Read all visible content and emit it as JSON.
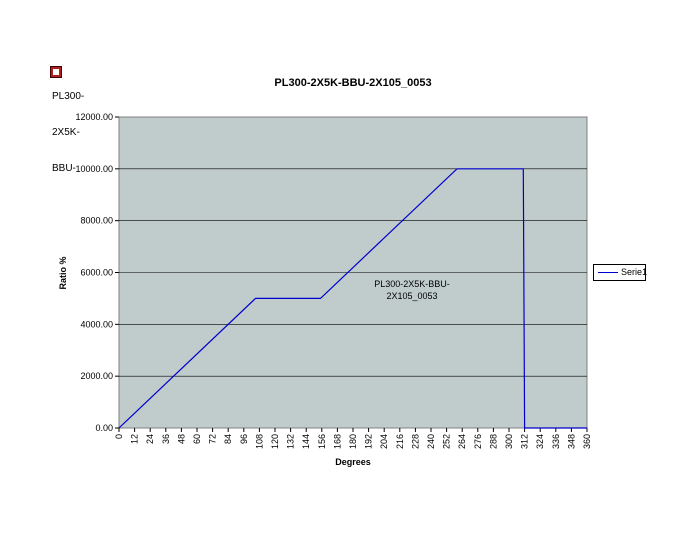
{
  "corner_label": [
    "PL300-",
    "2X5K-",
    "BBU-"
  ],
  "chart_data": {
    "type": "line",
    "title": "PL300-2X5K-BBU-2X105_0053",
    "xlabel": "Degrees",
    "ylabel": "Ratio %",
    "annotation": [
      "PL300-2X5K-BBU-",
      "2X105_0053"
    ],
    "xlim": [
      0,
      360
    ],
    "ylim": [
      0,
      12000
    ],
    "x_ticks": [
      0,
      12,
      24,
      36,
      48,
      60,
      72,
      84,
      96,
      108,
      120,
      132,
      144,
      156,
      168,
      180,
      192,
      204,
      216,
      228,
      240,
      252,
      264,
      276,
      288,
      300,
      312,
      324,
      336,
      348,
      360
    ],
    "y_ticks": [
      0,
      2000,
      4000,
      6000,
      8000,
      10000,
      12000
    ],
    "y_tick_labels": [
      "0.00",
      "2000.00",
      "4000.00",
      "6000.00",
      "8000.00",
      "10000.00",
      "12000.00"
    ],
    "grid": "horizontal",
    "legend": "right",
    "plot_background": "#c0cccc",
    "series": [
      {
        "name": "Serie1",
        "color": "#0000cc",
        "points": [
          [
            0,
            0
          ],
          [
            105,
            5000
          ],
          [
            155,
            5000
          ],
          [
            260,
            10000
          ],
          [
            311,
            10000
          ],
          [
            312,
            0
          ],
          [
            360,
            0
          ]
        ]
      }
    ]
  }
}
